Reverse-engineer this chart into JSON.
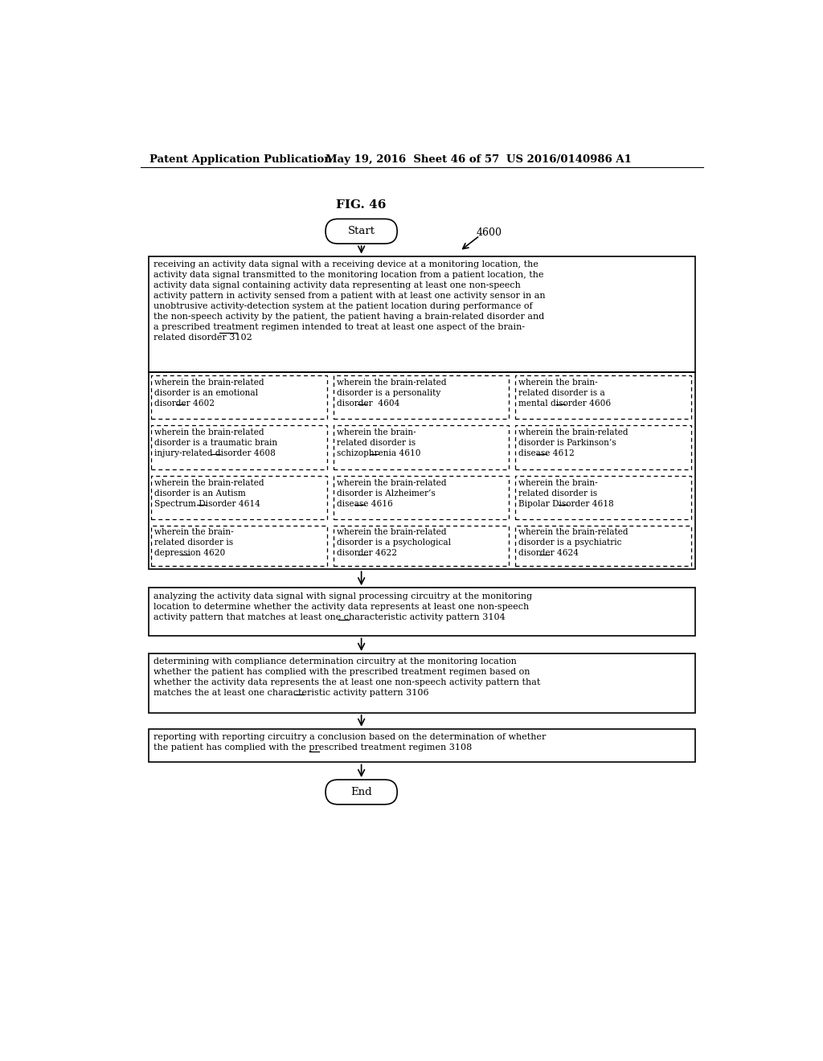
{
  "fig_label": "FIG. 46",
  "header_left": "Patent Application Publication",
  "header_center": "May 19, 2016  Sheet 46 of 57",
  "header_right": "US 2016/0140986 A1",
  "start_label": "Start",
  "end_label": "End",
  "ref_num_top": "4600",
  "box1_text": "receiving an activity data signal with a receiving device at a monitoring location, the\nactivity data signal transmitted to the monitoring location from a patient location, the\nactivity data signal containing activity data representing at least one non-speech\nactivity pattern in activity sensed from a patient with at least one activity sensor in an\nunobtrusive activity-detection system at the patient location during performance of\nthe non-speech activity by the patient, the patient having a brain-related disorder and\na prescribed treatment regimen intended to treat at least one aspect of the brain-\nrelated disorder 3102",
  "sub_boxes": [
    [
      "wherein the brain-related\ndisorder is an emotional\ndisorder 4602",
      "wherein the brain-related\ndisorder is a personality\ndisorder  4604",
      "wherein the brain-\nrelated disorder is a\nmental disorder 4606"
    ],
    [
      "wherein the brain-related\ndisorder is a traumatic brain\ninjury-related disorder 4608",
      "wherein the brain-\nrelated disorder is\nschizophrenia 4610",
      "wherein the brain-related\ndisorder is Parkinson’s\ndisease 4612"
    ],
    [
      "wherein the brain-related\ndisorder is an Autism\nSpectrum Disorder 4614",
      "wherein the brain-related\ndisorder is Alzheimer’s\ndisease 4616",
      "wherein the brain-\nrelated disorder is\nBipolar Disorder 4618"
    ],
    [
      "wherein the brain-\nrelated disorder is\ndepression 4620",
      "wherein the brain-related\ndisorder is a psychological\ndisorder 4622",
      "wherein the brain-related\ndisorder is a psychiatric\ndisorder 4624"
    ]
  ],
  "box2_text": "analyzing the activity data signal with signal processing circuitry at the monitoring\nlocation to determine whether the activity data represents at least one non-speech\nactivity pattern that matches at least one characteristic activity pattern 3104",
  "box3_text": "determining with compliance determination circuitry at the monitoring location\nwhether the patient has complied with the prescribed treatment regimen based on\nwhether the activity data represents the at least one non-speech activity pattern that\nmatches the at least one characteristic activity pattern 3106",
  "box4_text": "reporting with reporting circuitry a conclusion based on the determination of whether\nthe patient has complied with the prescribed treatment regimen 3108",
  "bg_color": "#ffffff",
  "text_color": "#000000",
  "fontsize_header": 9.5,
  "fontsize_main": 8.0,
  "fontsize_fig": 11,
  "fontsize_sub": 7.6
}
